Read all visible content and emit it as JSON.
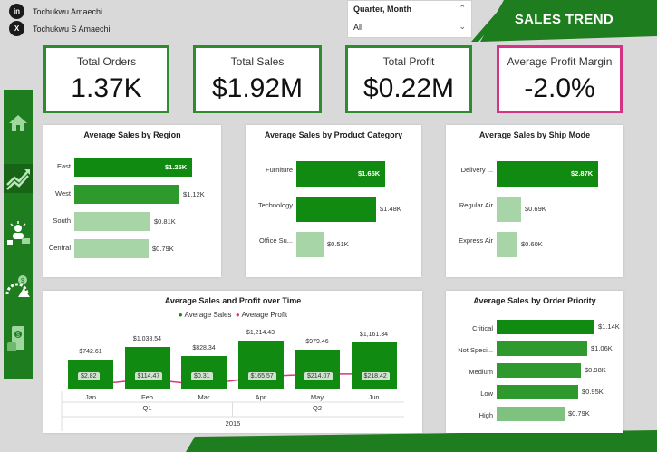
{
  "banner": {
    "title": "SALES TREND",
    "color": "#1e7d1e"
  },
  "socials": [
    {
      "icon": "linkedin-icon",
      "glyph": "in",
      "name": "Tochukwu Amaechi"
    },
    {
      "icon": "x-icon",
      "glyph": "X",
      "name": "Tochukwu S Amaechi"
    }
  ],
  "slicer": {
    "label": "Quarter, Month",
    "value": "All"
  },
  "nav": [
    {
      "icon": "home-icon"
    },
    {
      "icon": "trend-icon"
    },
    {
      "icon": "customer-icon"
    },
    {
      "icon": "gauge-icon"
    },
    {
      "icon": "money-icon"
    }
  ],
  "kpis": [
    {
      "title": "Total Orders",
      "value": "1.37K"
    },
    {
      "title": "Total Sales",
      "value": "$1.92M"
    },
    {
      "title": "Total Profit",
      "value": "$0.22M"
    },
    {
      "title": "Average Profit Margin",
      "value": "-2.0%"
    }
  ],
  "colors": {
    "dark": "#118a11",
    "mid": "#2e9a2e",
    "light": "#7fc17f",
    "pale": "#a8d5a8",
    "pink": "#e0337e",
    "kpi_border": "#2e8b2e",
    "kpi_border_alt": "#d63384"
  },
  "chart_data": [
    {
      "type": "bar",
      "title": "Average Sales by Region",
      "categories": [
        "East",
        "West",
        "South",
        "Central"
      ],
      "values": [
        1250,
        1120,
        810,
        790
      ],
      "labels": [
        "$1.25K",
        "$1.12K",
        "$0.81K",
        "$0.79K"
      ]
    },
    {
      "type": "bar",
      "title": "Average Sales by Product Category",
      "categories": [
        "Furniture",
        "Technology",
        "Office Su..."
      ],
      "values": [
        1650,
        1480,
        510
      ],
      "labels": [
        "$1.65K",
        "$1.48K",
        "$0.51K"
      ]
    },
    {
      "type": "bar",
      "title": "Average Sales by Ship Mode",
      "categories": [
        "Delivery ...",
        "Regular Air",
        "Express Air"
      ],
      "values": [
        2870,
        690,
        600
      ],
      "labels": [
        "$2.87K",
        "$0.69K",
        "$0.60K"
      ]
    },
    {
      "type": "bar",
      "title": "Average Sales by Order Priority",
      "categories": [
        "Critical",
        "Not Speci...",
        "Medium",
        "Low",
        "High"
      ],
      "values": [
        1140,
        1060,
        980,
        950,
        790
      ],
      "labels": [
        "$1.14K",
        "$1.06K",
        "$0.98K",
        "$0.95K",
        "$0.79K"
      ]
    },
    {
      "type": "bar",
      "title": "Average Sales and Profit over Time",
      "legend": [
        "Average Sales",
        "Average Profit"
      ],
      "categories": [
        "Jan",
        "Feb",
        "Mar",
        "Apr",
        "May",
        "Jun"
      ],
      "quarters": [
        "Q1",
        "Q2"
      ],
      "year": "2015",
      "series": [
        {
          "name": "Average Sales",
          "values": [
            742.61,
            1038.54,
            828.34,
            1214.43,
            979.46,
            1161.34
          ],
          "labels": [
            "$742.61",
            "$1,038.54",
            "$828.34",
            "$1,214.43",
            "$979.46",
            "$1,161.34"
          ]
        },
        {
          "name": "Average Profit",
          "values": [
            2.82,
            114.47,
            0.31,
            165.57,
            214.07,
            218.42
          ],
          "labels": [
            "$2.82",
            "$114.47",
            "$0.31",
            "$165.57",
            "$214.07",
            "$218.42"
          ]
        }
      ]
    }
  ]
}
